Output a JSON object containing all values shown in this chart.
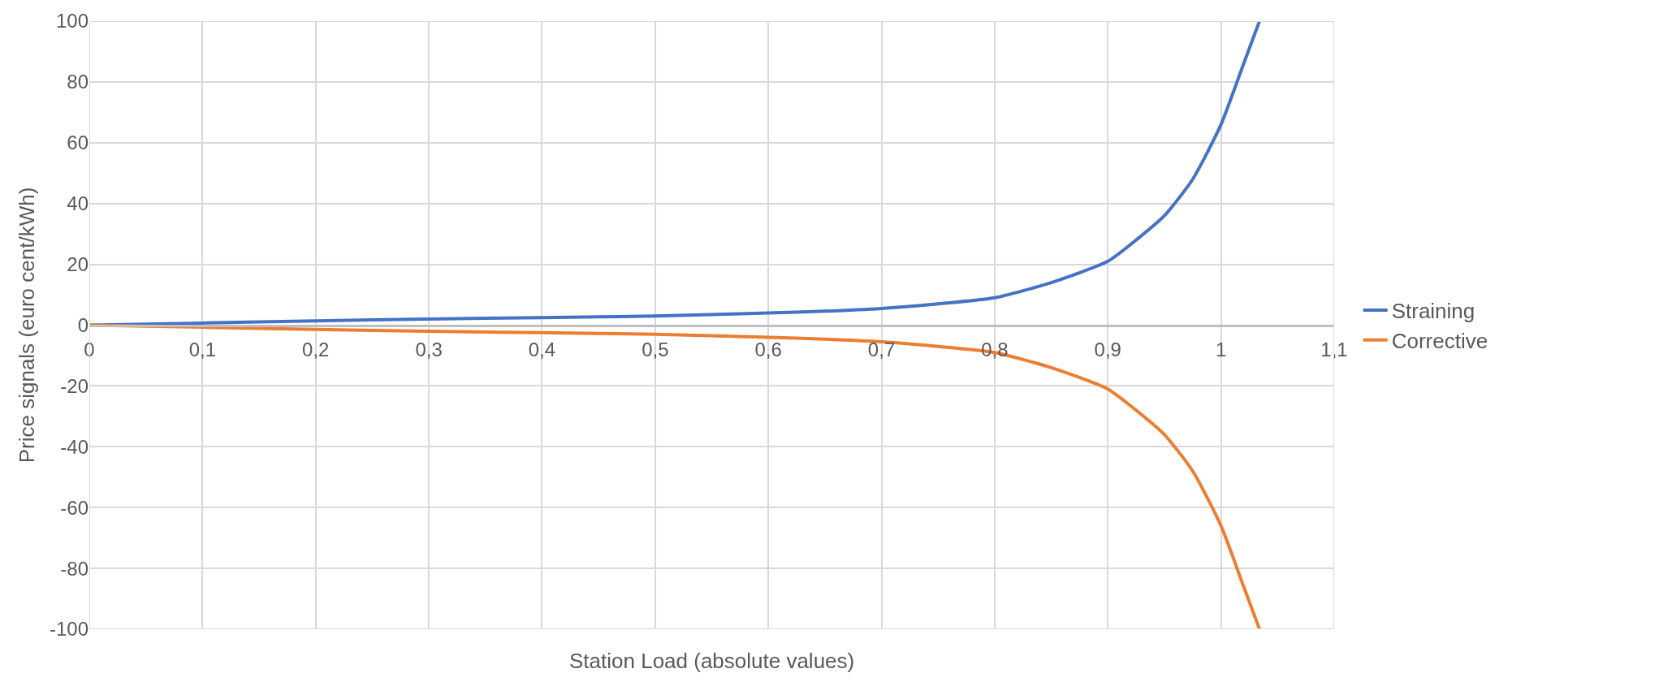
{
  "chart_data": {
    "type": "line",
    "xlabel": "Station Load (absolute values)",
    "ylabel": "Price signals (euro cent/kWh)",
    "xlim": [
      0,
      1.1
    ],
    "xticks": [
      {
        "value": 0,
        "label": "0"
      },
      {
        "value": 0.1,
        "label": "0,1"
      },
      {
        "value": 0.2,
        "label": "0,2"
      },
      {
        "value": 0.3,
        "label": "0,3"
      },
      {
        "value": 0.4,
        "label": "0,4"
      },
      {
        "value": 0.5,
        "label": "0,5"
      },
      {
        "value": 0.6,
        "label": "0,6"
      },
      {
        "value": 0.7,
        "label": "0,7"
      },
      {
        "value": 0.8,
        "label": "0,8"
      },
      {
        "value": 0.9,
        "label": "0,9"
      },
      {
        "value": 1,
        "label": "1"
      },
      {
        "value": 1.1,
        "label": "1,1"
      }
    ],
    "ylim": [
      -100,
      100
    ],
    "yticks": [
      -100,
      -80,
      -60,
      -40,
      -20,
      0,
      20,
      40,
      60,
      80,
      100
    ],
    "x": [
      0,
      0.1,
      0.2,
      0.3,
      0.4,
      0.5,
      0.6,
      0.65,
      0.7,
      0.75,
      0.8,
      0.85,
      0.9,
      0.925,
      0.95,
      0.975,
      1.0,
      1.02,
      1.034
    ],
    "series": [
      {
        "name": "Straining",
        "color": "#4472c4",
        "values": [
          0,
          0.7,
          1.4,
          2,
          2.5,
          3,
          4,
          4.6,
          5.5,
          7,
          9,
          14,
          21,
          28,
          36,
          48,
          66,
          86,
          100
        ]
      },
      {
        "name": "Corrective",
        "color": "#ed7d31",
        "values": [
          0,
          -0.7,
          -1.4,
          -2,
          -2.5,
          -3,
          -4,
          -4.6,
          -5.5,
          -7,
          -9,
          -14,
          -21,
          -28,
          -36,
          -48,
          -66,
          -86,
          -100
        ]
      }
    ],
    "grid": true,
    "legend": "right",
    "marker": "none",
    "line_style": "solid"
  }
}
